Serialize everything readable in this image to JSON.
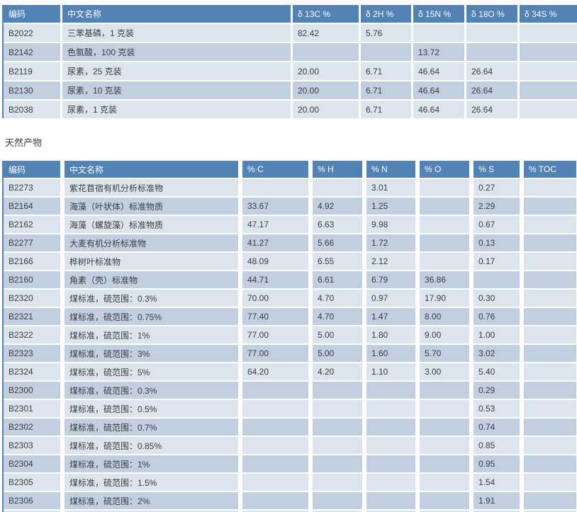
{
  "section_heading": "天然产物",
  "colors": {
    "header_bg": "#5283b4",
    "row_light": "#dce4ee",
    "row_dark": "#c2cfe1",
    "cell_text": "#3d3d3d",
    "header_text": "#fbfcfe",
    "table_border": "#5283b4"
  },
  "isotope_table": {
    "columns": [
      "编码",
      "中文名称",
      "δ 13C %",
      "δ 2H %",
      "δ 15N %",
      "δ 18O %",
      "δ 34S %"
    ],
    "rows": [
      [
        "B2022",
        "三苯基磷，1 克装",
        "82.42",
        "5.76",
        "",
        "",
        ""
      ],
      [
        "B2142",
        "色氨酸，100 克装",
        "",
        "",
        "13.72",
        "",
        ""
      ],
      [
        "B2119",
        "尿素，25 克装",
        "20.00",
        "6.71",
        "46.64",
        "26.64",
        ""
      ],
      [
        "B2130",
        "尿素，10 克装",
        "20.00",
        "6.71",
        "46.64",
        "26.64",
        ""
      ],
      [
        "B2038",
        "尿素，1 克装",
        "20.00",
        "6.71",
        "46.64",
        "26.64",
        ""
      ]
    ],
    "partial_row": false
  },
  "natural_products_table": {
    "columns": [
      "编码",
      "中文名称",
      "% C",
      "% H",
      "% N",
      "% O",
      "% S",
      "% TOC"
    ],
    "rows": [
      [
        "B2273",
        "紫花苜宿有机分析标准物",
        "",
        "",
        "3.01",
        "",
        "0.27",
        ""
      ],
      [
        "B2164",
        "海藻（叶状体）标准物质",
        "33.67",
        "4.92",
        "1.25",
        "",
        "2.29",
        ""
      ],
      [
        "B2162",
        "海藻（螺旋藻）标准物质",
        "47.17",
        "6.63",
        "9.98",
        "",
        "0.67",
        ""
      ],
      [
        "B2277",
        "大麦有机分析标准物",
        "41.27",
        "5.66",
        "1.72",
        "",
        "0.13",
        ""
      ],
      [
        "B2166",
        "桦树叶标准物",
        "48.09",
        "6.55",
        "2.12",
        "",
        "0.17",
        ""
      ],
      [
        "B2160",
        "角素（壳）标准物",
        "44.71",
        "6.61",
        "6.79",
        "36.86",
        "",
        ""
      ],
      [
        "B2320",
        "煤标准，硫范围：0.3%",
        "70.00",
        "4.70",
        "0.97",
        "17.90",
        "0.30",
        ""
      ],
      [
        "B2321",
        "煤标准，硫范围：0.75%",
        "77.40",
        "4.70",
        "1.47",
        "8.00",
        "0.76",
        ""
      ],
      [
        "B2322",
        "煤标准，硫范围：1%",
        "77.00",
        "5.00",
        "1.80",
        "9.00",
        "1.00",
        ""
      ],
      [
        "B2323",
        "煤标准，硫范围：3%",
        "77.00",
        "5.00",
        "1.60",
        "5.70",
        "3.02",
        ""
      ],
      [
        "B2324",
        "煤标准，硫范围：5%",
        "64.20",
        "4.20",
        "1.10",
        "3.00",
        "5.40",
        ""
      ],
      [
        "B2300",
        "煤标准，硫范围：0.3%",
        "",
        "",
        "",
        "",
        "0.29",
        ""
      ],
      [
        "B2301",
        "煤标准，硫范围：0.5%",
        "",
        "",
        "",
        "",
        "0.53",
        ""
      ],
      [
        "B2302",
        "煤标准，硫范围：0.7%",
        "",
        "",
        "",
        "",
        "0.74",
        ""
      ],
      [
        "B2303",
        "煤标准，硫范围：0.85%",
        "",
        "",
        "",
        "",
        "0.85",
        ""
      ],
      [
        "B2304",
        "煤标准，硫范围：1%",
        "",
        "",
        "",
        "",
        "0.95",
        ""
      ],
      [
        "B2305",
        "煤标准，硫范围：1.5%",
        "",
        "",
        "",
        "",
        "1.54",
        ""
      ],
      [
        "B2306",
        "煤标准，硫范围：2%",
        "",
        "",
        "",
        "",
        "1.91",
        ""
      ]
    ],
    "partial_row": true
  }
}
